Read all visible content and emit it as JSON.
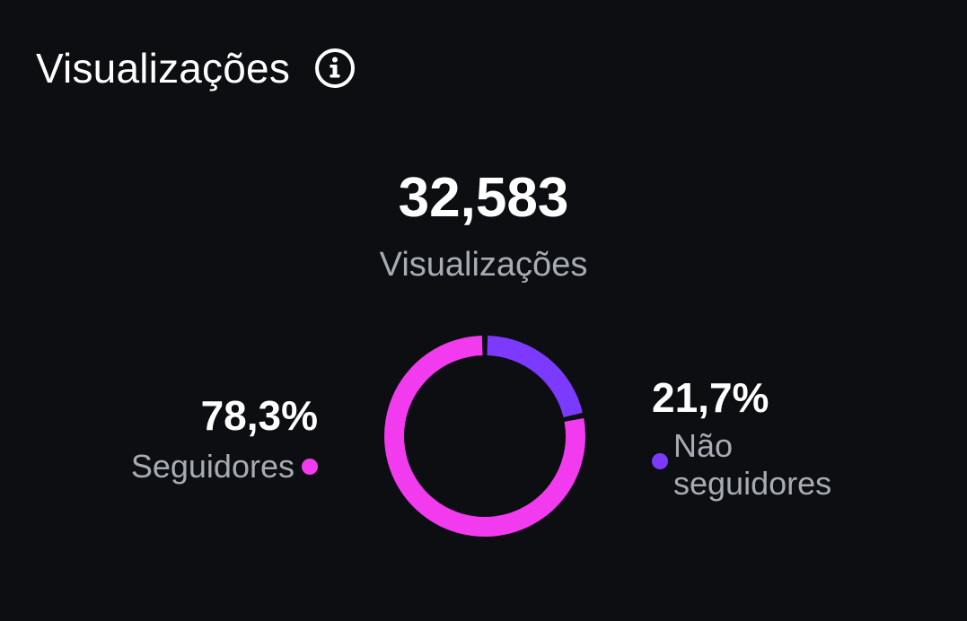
{
  "header": {
    "title": "Visualizações",
    "info_icon": "info-circle-icon"
  },
  "summary": {
    "total": "32,583",
    "total_label": "Visualizações"
  },
  "legend": {
    "followers": {
      "percent_label": "78,3%",
      "label": "Seguidores",
      "color": "#f23bef"
    },
    "non_followers": {
      "percent_label": "21,7%",
      "label": "Não seguidores",
      "color": "#7c3aff"
    }
  },
  "chart_data": {
    "type": "pie",
    "donut": true,
    "categories": [
      "Seguidores",
      "Não seguidores"
    ],
    "values": [
      78.3,
      21.7
    ],
    "colors": [
      "#f23bef",
      "#7c3aff"
    ],
    "start": "top",
    "direction": "clockwise-from-non-followers"
  }
}
